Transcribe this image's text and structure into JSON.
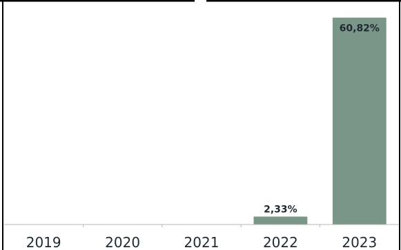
{
  "chart_data": {
    "type": "bar",
    "categories": [
      "2019",
      "2020",
      "2021",
      "2022",
      "2023"
    ],
    "values": [
      null,
      null,
      null,
      2.33,
      60.82
    ],
    "data_labels": [
      "",
      "",
      "",
      "2,33%",
      "60,82%"
    ],
    "ylim": [
      0,
      66
    ],
    "grid": false,
    "legend": "none",
    "bar_color": "#7a9688",
    "axis_color": "#b5b5b5",
    "frame_color": "#000000"
  }
}
